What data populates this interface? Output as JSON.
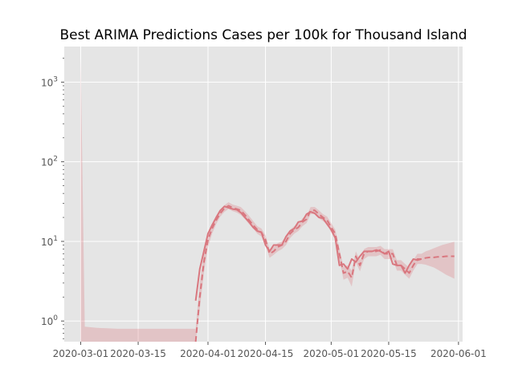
{
  "chart_data": {
    "type": "line",
    "title": "Best ARIMA Predictions Cases per 100k for Thousand Island",
    "xlabel": "",
    "ylabel": "",
    "y_scale": "log",
    "ylim": [
      0.55,
      2800
    ],
    "xlim": [
      "2020-02-26",
      "2020-06-02"
    ],
    "grid": true,
    "background": "#e5e5e5",
    "series_color": "#d9777f",
    "band_color": "#d9777f",
    "x_ticks": [
      "2020-03-01",
      "2020-03-15",
      "2020-04-01",
      "2020-04-15",
      "2020-05-01",
      "2020-05-15",
      "2020-06-01"
    ],
    "y_ticks": [
      {
        "value": 1,
        "label": "10^0"
      },
      {
        "value": 10,
        "label": "10^1"
      },
      {
        "value": 100,
        "label": "10^2"
      },
      {
        "value": 1000,
        "label": "10^3"
      }
    ],
    "series": [
      {
        "style": "solid",
        "points": [
          [
            "2020-03-29",
            1.8
          ],
          [
            "2020-03-30",
            4.5
          ],
          [
            "2020-03-31",
            7.5
          ],
          [
            "2020-04-01",
            12.5
          ],
          [
            "2020-04-02",
            16.0
          ],
          [
            "2020-04-03",
            20.0
          ],
          [
            "2020-04-04",
            24.5
          ],
          [
            "2020-04-05",
            27.5
          ],
          [
            "2020-04-06",
            26.5
          ],
          [
            "2020-04-07",
            25.5
          ],
          [
            "2020-04-08",
            25.0
          ],
          [
            "2020-04-09",
            23.0
          ],
          [
            "2020-04-10",
            20.0
          ],
          [
            "2020-04-11",
            17.5
          ],
          [
            "2020-04-12",
            15.0
          ],
          [
            "2020-04-13",
            13.5
          ],
          [
            "2020-04-14",
            13.0
          ],
          [
            "2020-04-15",
            9.0
          ],
          [
            "2020-04-16",
            7.5
          ],
          [
            "2020-04-17",
            9.0
          ],
          [
            "2020-04-18",
            9.0
          ],
          [
            "2020-04-19",
            9.0
          ],
          [
            "2020-04-20",
            11.5
          ],
          [
            "2020-04-21",
            13.5
          ],
          [
            "2020-04-22",
            14.5
          ],
          [
            "2020-04-23",
            17.5
          ],
          [
            "2020-04-24",
            18.0
          ],
          [
            "2020-04-25",
            22.0
          ],
          [
            "2020-04-26",
            23.5
          ],
          [
            "2020-04-27",
            22.5
          ],
          [
            "2020-04-28",
            20.0
          ],
          [
            "2020-04-29",
            19.5
          ],
          [
            "2020-04-30",
            16.5
          ],
          [
            "2020-05-01",
            14.0
          ],
          [
            "2020-05-02",
            11.0
          ],
          [
            "2020-05-03",
            5.0
          ],
          [
            "2020-05-04",
            5.2
          ],
          [
            "2020-05-05",
            4.5
          ],
          [
            "2020-05-06",
            6.0
          ],
          [
            "2020-05-07",
            5.5
          ],
          [
            "2020-05-08",
            6.5
          ],
          [
            "2020-05-09",
            7.5
          ],
          [
            "2020-05-10",
            7.5
          ],
          [
            "2020-05-11",
            7.5
          ],
          [
            "2020-05-12",
            7.8
          ],
          [
            "2020-05-13",
            7.5
          ],
          [
            "2020-05-14",
            7.0
          ],
          [
            "2020-05-15",
            7.5
          ],
          [
            "2020-05-16",
            5.2
          ],
          [
            "2020-05-17",
            5.0
          ],
          [
            "2020-05-18",
            5.0
          ],
          [
            "2020-05-19",
            4.0
          ],
          [
            "2020-05-20",
            5.0
          ],
          [
            "2020-05-21",
            6.0
          ],
          [
            "2020-05-22",
            5.8
          ],
          [
            "2020-05-23",
            6.0
          ]
        ]
      },
      {
        "style": "dashed",
        "points": [
          [
            "2020-03-29",
            0.55
          ],
          [
            "2020-03-30",
            2.0
          ],
          [
            "2020-03-31",
            5.5
          ],
          [
            "2020-04-01",
            10.5
          ],
          [
            "2020-04-02",
            14.5
          ],
          [
            "2020-04-03",
            18.5
          ],
          [
            "2020-04-04",
            22.5
          ],
          [
            "2020-04-05",
            26.0
          ],
          [
            "2020-04-06",
            28.0
          ],
          [
            "2020-04-07",
            26.5
          ],
          [
            "2020-04-08",
            25.5
          ],
          [
            "2020-04-09",
            24.5
          ],
          [
            "2020-04-10",
            21.5
          ],
          [
            "2020-04-11",
            18.5
          ],
          [
            "2020-04-12",
            16.0
          ],
          [
            "2020-04-13",
            14.0
          ],
          [
            "2020-04-14",
            13.0
          ],
          [
            "2020-04-15",
            10.5
          ],
          [
            "2020-04-16",
            7.0
          ],
          [
            "2020-04-17",
            7.5
          ],
          [
            "2020-04-18",
            8.5
          ],
          [
            "2020-04-19",
            9.0
          ],
          [
            "2020-04-20",
            10.0
          ],
          [
            "2020-04-21",
            12.5
          ],
          [
            "2020-04-22",
            14.0
          ],
          [
            "2020-04-23",
            15.0
          ],
          [
            "2020-04-24",
            17.5
          ],
          [
            "2020-04-25",
            19.0
          ],
          [
            "2020-04-26",
            24.5
          ],
          [
            "2020-04-27",
            24.5
          ],
          [
            "2020-04-28",
            22.0
          ],
          [
            "2020-04-29",
            20.0
          ],
          [
            "2020-04-30",
            18.5
          ],
          [
            "2020-05-01",
            15.0
          ],
          [
            "2020-05-02",
            12.5
          ],
          [
            "2020-05-03",
            7.0
          ],
          [
            "2020-05-04",
            4.0
          ],
          [
            "2020-05-05",
            4.2
          ],
          [
            "2020-05-06",
            3.5
          ],
          [
            "2020-05-07",
            6.5
          ],
          [
            "2020-05-08",
            5.0
          ],
          [
            "2020-05-09",
            7.0
          ],
          [
            "2020-05-10",
            7.5
          ],
          [
            "2020-05-11",
            7.5
          ],
          [
            "2020-05-12",
            7.5
          ],
          [
            "2020-05-13",
            7.8
          ],
          [
            "2020-05-14",
            7.0
          ],
          [
            "2020-05-15",
            7.0
          ],
          [
            "2020-05-16",
            7.0
          ],
          [
            "2020-05-17",
            5.0
          ],
          [
            "2020-05-18",
            5.0
          ],
          [
            "2020-05-19",
            4.5
          ],
          [
            "2020-05-20",
            4.0
          ],
          [
            "2020-05-21",
            5.0
          ],
          [
            "2020-05-22",
            6.0
          ],
          [
            "2020-05-23",
            6.0
          ],
          [
            "2020-05-24",
            6.2
          ],
          [
            "2020-05-25",
            6.3
          ],
          [
            "2020-05-26",
            6.3
          ],
          [
            "2020-05-27",
            6.4
          ],
          [
            "2020-05-28",
            6.4
          ],
          [
            "2020-05-29",
            6.5
          ],
          [
            "2020-05-30",
            6.5
          ],
          [
            "2020-05-31",
            6.5
          ]
        ]
      }
    ],
    "confidence_band": [
      [
        "2020-03-01",
        0.05,
        2000
      ],
      [
        "2020-03-02",
        0.05,
        0.85
      ],
      [
        "2020-03-05",
        0.05,
        0.82
      ],
      [
        "2020-03-10",
        0.05,
        0.8
      ],
      [
        "2020-03-28",
        0.05,
        0.8
      ],
      [
        "2020-03-29",
        0.05,
        0.8
      ],
      [
        "2020-03-30",
        1.4,
        3.0
      ],
      [
        "2020-03-31",
        4.0,
        7.0
      ],
      [
        "2020-04-01",
        8.5,
        12.5
      ],
      [
        "2020-04-02",
        12.5,
        16.5
      ],
      [
        "2020-04-03",
        16.5,
        21.0
      ],
      [
        "2020-04-04",
        20.5,
        25.0
      ],
      [
        "2020-04-05",
        23.5,
        28.5
      ],
      [
        "2020-04-06",
        25.5,
        31.0
      ],
      [
        "2020-04-07",
        24.0,
        29.0
      ],
      [
        "2020-04-08",
        23.0,
        28.0
      ],
      [
        "2020-04-09",
        21.5,
        27.0
      ],
      [
        "2020-04-10",
        19.0,
        24.0
      ],
      [
        "2020-04-11",
        16.5,
        21.0
      ],
      [
        "2020-04-12",
        14.5,
        18.0
      ],
      [
        "2020-04-13",
        12.5,
        15.5
      ],
      [
        "2020-04-14",
        11.5,
        14.5
      ],
      [
        "2020-04-15",
        9.0,
        12.0
      ],
      [
        "2020-04-16",
        6.2,
        8.0
      ],
      [
        "2020-04-17",
        6.8,
        8.5
      ],
      [
        "2020-04-18",
        7.5,
        9.5
      ],
      [
        "2020-04-19",
        8.0,
        10.0
      ],
      [
        "2020-04-20",
        9.0,
        11.5
      ],
      [
        "2020-04-21",
        11.0,
        14.0
      ],
      [
        "2020-04-22",
        12.5,
        15.5
      ],
      [
        "2020-04-23",
        13.5,
        16.5
      ],
      [
        "2020-04-24",
        15.5,
        19.5
      ],
      [
        "2020-04-25",
        17.0,
        21.0
      ],
      [
        "2020-04-26",
        22.0,
        27.0
      ],
      [
        "2020-04-27",
        22.0,
        27.0
      ],
      [
        "2020-04-28",
        19.5,
        24.5
      ],
      [
        "2020-04-29",
        18.0,
        22.0
      ],
      [
        "2020-04-30",
        16.5,
        20.5
      ],
      [
        "2020-05-01",
        13.0,
        17.0
      ],
      [
        "2020-05-02",
        11.0,
        14.0
      ],
      [
        "2020-05-03",
        6.0,
        8.0
      ],
      [
        "2020-05-04",
        3.3,
        4.8
      ],
      [
        "2020-05-05",
        3.5,
        5.0
      ],
      [
        "2020-05-06",
        2.7,
        4.3
      ],
      [
        "2020-05-07",
        5.5,
        7.5
      ],
      [
        "2020-05-08",
        4.2,
        5.8
      ],
      [
        "2020-05-09",
        6.0,
        8.0
      ],
      [
        "2020-05-10",
        6.5,
        8.5
      ],
      [
        "2020-05-11",
        6.5,
        8.5
      ],
      [
        "2020-05-12",
        6.5,
        8.5
      ],
      [
        "2020-05-13",
        6.8,
        8.8
      ],
      [
        "2020-05-14",
        6.0,
        8.0
      ],
      [
        "2020-05-15",
        6.0,
        8.0
      ],
      [
        "2020-05-16",
        6.0,
        8.0
      ],
      [
        "2020-05-17",
        4.3,
        5.8
      ],
      [
        "2020-05-18",
        4.3,
        5.8
      ],
      [
        "2020-05-19",
        3.8,
        5.2
      ],
      [
        "2020-05-20",
        3.4,
        4.7
      ],
      [
        "2020-05-21",
        4.3,
        5.8
      ],
      [
        "2020-05-22",
        5.2,
        7.0
      ],
      [
        "2020-05-23",
        5.2,
        7.0
      ],
      [
        "2020-05-24",
        5.1,
        7.5
      ],
      [
        "2020-05-25",
        4.9,
        7.8
      ],
      [
        "2020-05-26",
        4.7,
        8.2
      ],
      [
        "2020-05-27",
        4.4,
        8.6
      ],
      [
        "2020-05-28",
        4.1,
        9.0
      ],
      [
        "2020-05-29",
        3.8,
        9.3
      ],
      [
        "2020-05-30",
        3.6,
        9.6
      ],
      [
        "2020-05-31",
        3.4,
        9.9
      ]
    ]
  }
}
